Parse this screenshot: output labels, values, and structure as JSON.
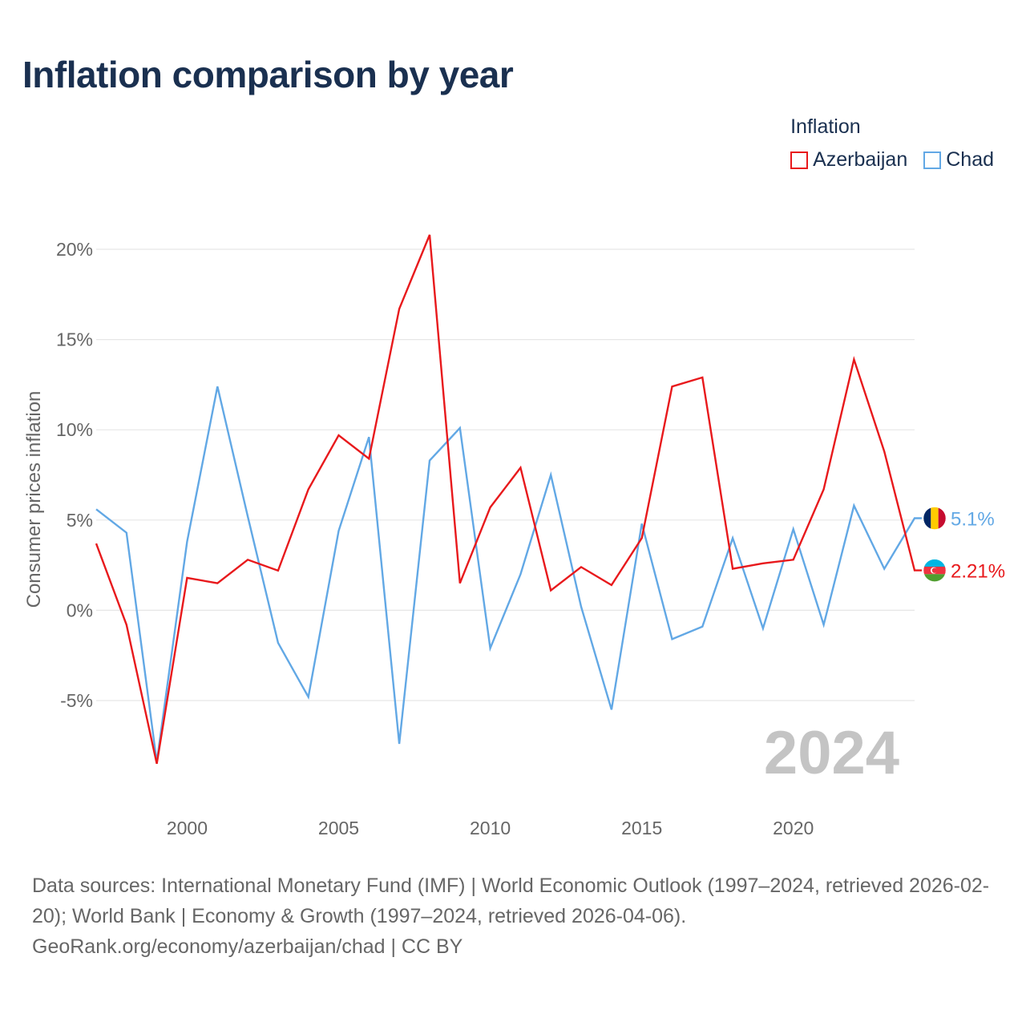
{
  "title": "Inflation comparison by year",
  "legend": {
    "title": "Inflation",
    "items": [
      {
        "label": "Azerbaijan",
        "color": "#e8191c"
      },
      {
        "label": "Chad",
        "color": "#62a8e5"
      }
    ]
  },
  "chart_data": {
    "type": "line",
    "title": "Inflation comparison by year",
    "xlabel": "",
    "ylabel": "Consumer prices inflation",
    "x": [
      1997,
      1998,
      1999,
      2000,
      2001,
      2002,
      2003,
      2004,
      2005,
      2006,
      2007,
      2008,
      2009,
      2010,
      2011,
      2012,
      2013,
      2014,
      2015,
      2016,
      2017,
      2018,
      2019,
      2020,
      2021,
      2022,
      2023,
      2024
    ],
    "xlim": [
      1997,
      2024
    ],
    "ylim": [
      -8.5,
      21
    ],
    "x_ticks": [
      2000,
      2005,
      2010,
      2015,
      2020
    ],
    "y_ticks": [
      -5,
      0,
      5,
      10,
      15,
      20
    ],
    "y_tick_labels": [
      "-5%",
      "0%",
      "5%",
      "10%",
      "15%",
      "20%"
    ],
    "grid": true,
    "legend_position": "top-right",
    "annotation": "2024",
    "series": [
      {
        "name": "Azerbaijan",
        "color": "#e8191c",
        "end_label": "2.21%",
        "values": [
          3.7,
          -0.8,
          -8.5,
          1.8,
          1.5,
          2.8,
          2.2,
          6.7,
          9.7,
          8.4,
          16.7,
          20.8,
          1.5,
          5.7,
          7.9,
          1.1,
          2.4,
          1.4,
          4.0,
          12.4,
          12.9,
          2.3,
          2.6,
          2.8,
          6.7,
          13.9,
          8.8,
          2.21
        ]
      },
      {
        "name": "Chad",
        "color": "#62a8e5",
        "end_label": "5.1%",
        "values": [
          5.6,
          4.3,
          -8.4,
          3.8,
          12.4,
          5.2,
          -1.8,
          -4.8,
          4.4,
          9.6,
          -7.4,
          8.3,
          10.1,
          -2.1,
          2.0,
          7.5,
          0.2,
          -5.5,
          4.8,
          -1.6,
          -0.9,
          4.0,
          -1.0,
          4.5,
          -0.8,
          5.8,
          2.3,
          5.1
        ]
      }
    ]
  },
  "footer": {
    "sources": "Data sources: International Monetary Fund (IMF) | World Economic Outlook (1997–2024, retrieved 2026-02-20); World Bank | Economy & Growth (1997–2024, retrieved 2026-04-06).",
    "credit": "GeoRank.org/economy/azerbaijan/chad | CC BY"
  }
}
